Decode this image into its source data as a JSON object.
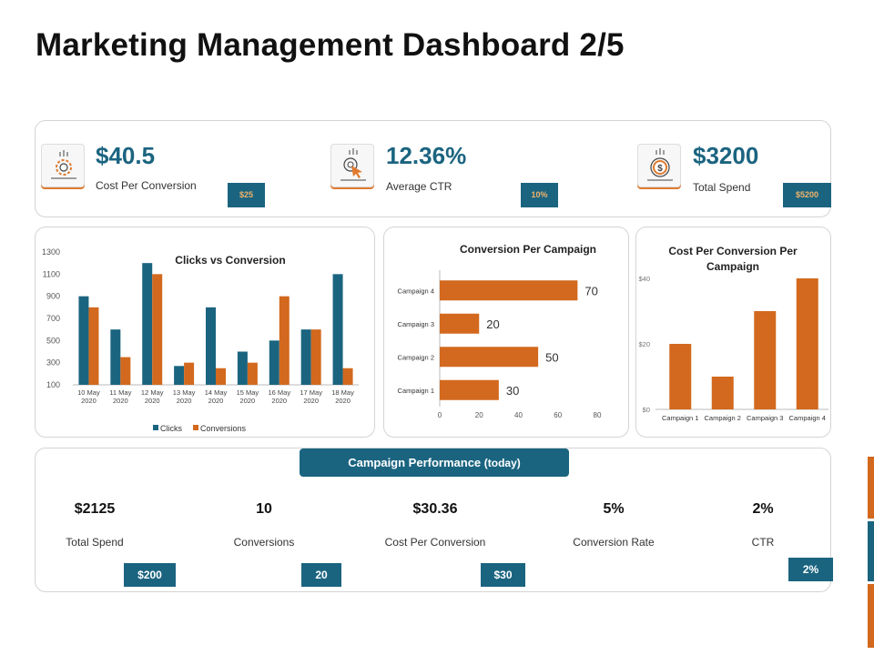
{
  "page": {
    "title": "Marketing Management Dashboard 2/5"
  },
  "colors": {
    "teal": "#1b6480",
    "orange": "#d2691e",
    "badge_text": "#f0b36a"
  },
  "kpis": [
    {
      "icon": "coin-gear-icon",
      "value": "$40.5",
      "label": "Cost Per Conversion",
      "badge": "$25"
    },
    {
      "icon": "cursor-click-icon",
      "value": "12.36%",
      "label": "Average CTR",
      "badge": "10%"
    },
    {
      "icon": "dollar-coin-icon",
      "value": "$3200",
      "label": "Total Spend",
      "badge": "$5200"
    }
  ],
  "chart_data": [
    {
      "type": "bar",
      "title": "Clicks vs Conversion",
      "categories": [
        "10 May 2020",
        "11 May 2020",
        "12 May 2020",
        "13 May 2020",
        "14 May 2020",
        "15 May 2020",
        "16 May 2020",
        "17 May 2020",
        "18 May 2020"
      ],
      "series": [
        {
          "name": "Clicks",
          "color": "#1b6480",
          "values": [
            900,
            600,
            1200,
            270,
            800,
            400,
            500,
            600,
            1100
          ]
        },
        {
          "name": "Conversions",
          "color": "#d2691e",
          "values": [
            800,
            350,
            1100,
            300,
            250,
            300,
            900,
            600,
            250
          ]
        }
      ],
      "ylim": [
        100,
        1300
      ],
      "yticks": [
        "1300",
        "1100",
        "900",
        "700",
        "500",
        "300",
        "100"
      ],
      "legend": "bottom",
      "grid": false
    },
    {
      "type": "bar",
      "orientation": "horizontal",
      "title": "Conversion Per Campaign",
      "categories": [
        "Campaign 4",
        "Campaign 3",
        "Campaign 2",
        "Campaign 1"
      ],
      "values": [
        70,
        20,
        50,
        30
      ],
      "value_labels": [
        "70",
        "20",
        "50",
        "30"
      ],
      "xlim": [
        0,
        80
      ],
      "xticks": [
        "0",
        "20",
        "40",
        "60",
        "80"
      ],
      "color": "#d2691e",
      "grid": false
    },
    {
      "type": "bar",
      "title": "Cost Per Conversion Per Campaign",
      "categories": [
        "Campaign 1",
        "Campaign 2",
        "Campaign 3",
        "Campaign 4"
      ],
      "values": [
        20,
        10,
        30,
        40
      ],
      "ylim": [
        0,
        40
      ],
      "yticks": [
        "$40",
        "$20",
        "$0"
      ],
      "color": "#d2691e",
      "grid": false
    }
  ],
  "performance": {
    "header": "Campaign Performance",
    "header_sub": "(today)",
    "items": [
      {
        "value": "$2125",
        "label": "Total Spend",
        "badge": "$200"
      },
      {
        "value": "10",
        "label": "Conversions",
        "badge": "20"
      },
      {
        "value": "$30.36",
        "label": "Cost Per Conversion",
        "badge": "$30"
      },
      {
        "value": "5%",
        "label": "Conversion Rate",
        "badge": ""
      },
      {
        "value": "2%",
        "label": "CTR",
        "badge": "2%"
      }
    ]
  }
}
